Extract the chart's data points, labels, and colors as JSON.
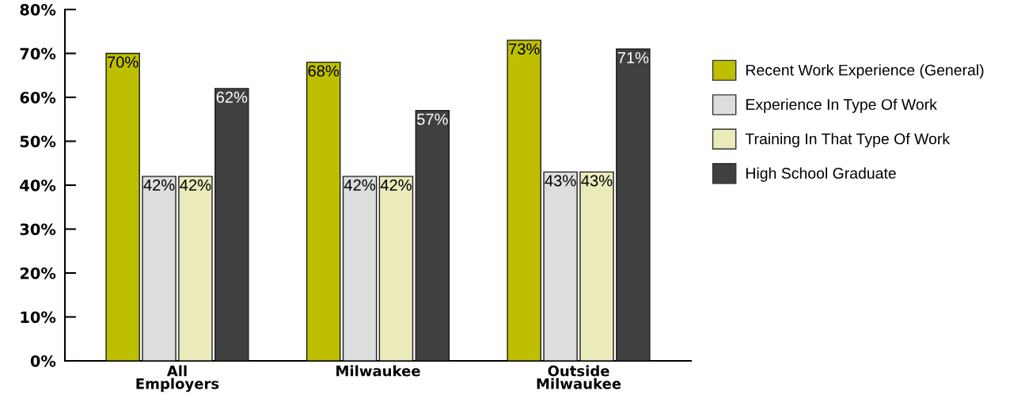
{
  "chart_data": {
    "type": "bar",
    "categories": [
      "All\nEmployers",
      "Milwaukee",
      "Outside\nMilwaukee"
    ],
    "series": [
      {
        "name": "Recent Work Experience (General)",
        "color": "#bdbf00",
        "values": [
          70,
          68,
          73
        ],
        "value_labels": [
          "70%",
          "68%",
          "73%"
        ]
      },
      {
        "name": "Experience In Type Of Work",
        "color": "#dddddd",
        "values": [
          42,
          42,
          43
        ],
        "value_labels": [
          "42%",
          "42%",
          "43%"
        ]
      },
      {
        "name": "Training In That Type Of Work",
        "color": "#ebeabb",
        "values": [
          42,
          42,
          43
        ],
        "value_labels": [
          "42%",
          "42%",
          "43%"
        ]
      },
      {
        "name": "High School Graduate",
        "color": "#404040",
        "values": [
          62,
          57,
          71
        ],
        "value_labels": [
          "62%",
          "57%",
          "71%"
        ]
      }
    ],
    "ylim": [
      0,
      80
    ],
    "yticks": [
      {
        "value": 0,
        "label": "0%"
      },
      {
        "value": 10,
        "label": "10%"
      },
      {
        "value": 20,
        "label": "20%"
      },
      {
        "value": 30,
        "label": "30%"
      },
      {
        "value": 40,
        "label": "40%"
      },
      {
        "value": 50,
        "label": "50%"
      },
      {
        "value": 60,
        "label": "60%"
      },
      {
        "value": 70,
        "label": "70%"
      },
      {
        "value": 80,
        "label": "80%"
      }
    ],
    "grid": false,
    "legend": "right"
  }
}
